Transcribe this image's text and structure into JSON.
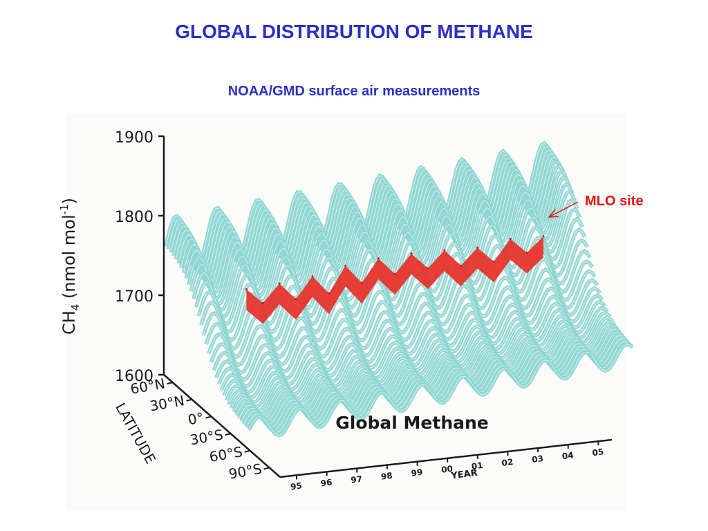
{
  "slide": {
    "title": "GLOBAL DISTRIBUTION OF METHANE",
    "subtitle": "NOAA/GMD surface air measurements",
    "annotation": "MLO site"
  },
  "chart_data": {
    "type": "surface",
    "title": "Global Methane",
    "ylabel": "CH4 (nmol mol-1)",
    "ylabel_parts": {
      "main": "CH",
      "sub": "4",
      "open": " (nmol mol",
      "sup": "-1",
      "close": ")"
    },
    "xlabel": "YEAR",
    "zlabel": "LATITUDE",
    "ylim": [
      1600,
      1900
    ],
    "yticks": [
      "1600",
      "1700",
      "1800",
      "1900"
    ],
    "year_ticks": [
      "95",
      "96",
      "97",
      "98",
      "99",
      "00",
      "01",
      "02",
      "03",
      "04",
      "05"
    ],
    "latitude_ticks": [
      "60°N",
      "30°N",
      "0°",
      "30°S",
      "60°S",
      "90°S"
    ],
    "year_range": [
      1995,
      2005
    ],
    "series": [
      {
        "name": "MLO site",
        "color": "#e8302a",
        "x": [
          1995.0,
          1995.5,
          1996.0,
          1996.5,
          1997.0,
          1997.5,
          1998.0,
          1998.5,
          1999.0,
          1999.5,
          2000.0,
          2000.5,
          2001.0,
          2001.5,
          2002.0,
          2002.5,
          2003.0,
          2003.5,
          2004.0
        ],
        "values": [
          1726,
          1708,
          1732,
          1712,
          1740,
          1718,
          1752,
          1730,
          1760,
          1740,
          1765,
          1746,
          1768,
          1748,
          1770,
          1752,
          1780,
          1762,
          1782
        ]
      }
    ],
    "surface_color": "#8fd6d2",
    "surface_line_color": "#ffffff"
  }
}
